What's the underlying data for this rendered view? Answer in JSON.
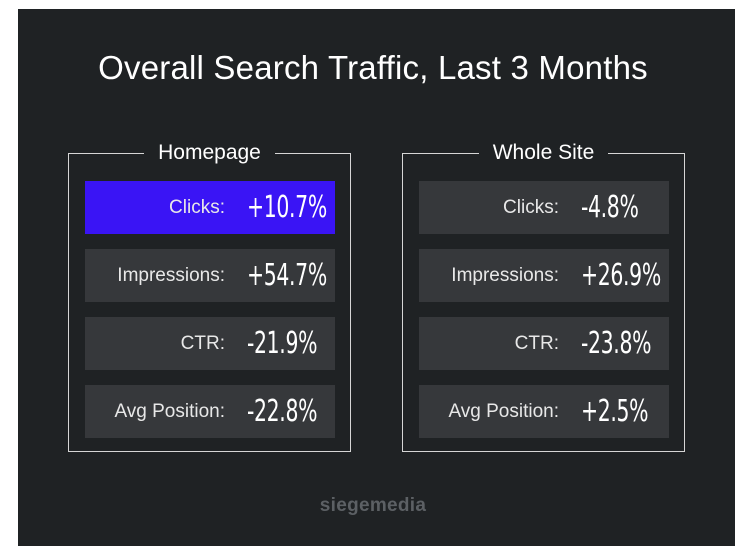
{
  "title": "Overall Search Traffic, Last 3 Months",
  "panels": [
    {
      "heading": "Homepage",
      "rows": [
        {
          "label": "Clicks:",
          "value": "+10.7%",
          "highlighted": true
        },
        {
          "label": "Impressions:",
          "value": "+54.7%",
          "highlighted": false
        },
        {
          "label": "CTR:",
          "value": "-21.9%",
          "highlighted": false
        },
        {
          "label": "Avg Position:",
          "value": "-22.8%",
          "highlighted": false
        }
      ]
    },
    {
      "heading": "Whole Site",
      "rows": [
        {
          "label": "Clicks:",
          "value": "-4.8%",
          "highlighted": false
        },
        {
          "label": "Impressions:",
          "value": "+26.9%",
          "highlighted": false
        },
        {
          "label": "CTR:",
          "value": "-23.8%",
          "highlighted": false
        },
        {
          "label": "Avg Position:",
          "value": "+2.5%",
          "highlighted": false
        }
      ]
    }
  ],
  "brand": "siegemedia",
  "colors": {
    "background": "#1f2224",
    "row": "#36383b",
    "highlight": "#3a14f5",
    "border": "#d6d6d6",
    "text": "#ffffff",
    "brand": "#5c6064"
  }
}
